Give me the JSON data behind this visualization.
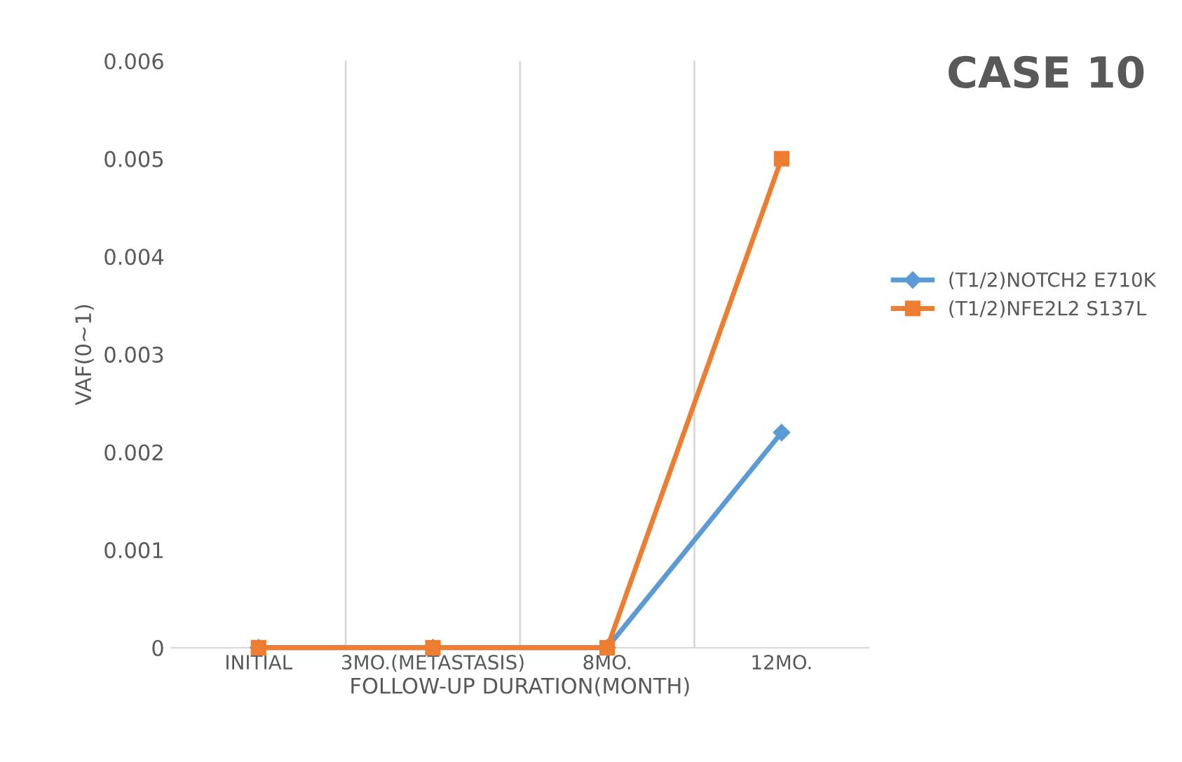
{
  "chart_data": {
    "type": "line",
    "title": "CASE 10",
    "xlabel": "FOLLOW-UP DURATION(MONTH)",
    "ylabel": "VAF(0~1)",
    "categories": [
      "INITIAL",
      "3MO.(METASTASIS)",
      "8MO.",
      "12MO."
    ],
    "series": [
      {
        "name": "(T1/2)NOTCH2 E710K",
        "color": "#5b9bd5",
        "marker": "diamond",
        "values": [
          0,
          0,
          0,
          0.0022
        ]
      },
      {
        "name": "(T1/2)NFE2L2 S137L",
        "color": "#ed7d31",
        "marker": "square",
        "values": [
          0,
          0,
          0,
          0.005
        ]
      }
    ],
    "ylim": [
      0,
      0.006
    ],
    "yticks": [
      0,
      0.001,
      0.002,
      0.003,
      0.004,
      0.005,
      0.006
    ],
    "grid": "x",
    "legend": "right",
    "line_style": "solid"
  }
}
